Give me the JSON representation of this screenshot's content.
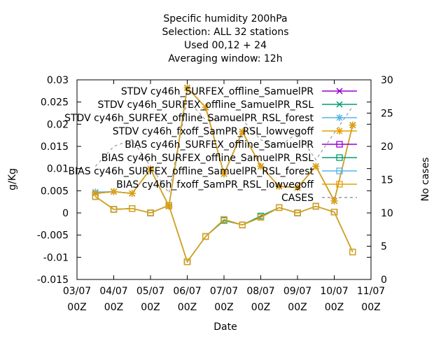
{
  "chart_data": {
    "type": "line",
    "title_lines": [
      "Specific humidity 200hPa",
      "Selection: ALL      32 stations",
      "Used  00,12  + 24",
      "Averaging window: 12h"
    ],
    "xlabel": "Date",
    "ylabel": "g/Kg",
    "y2label": "No cases",
    "x_ticks": [
      {
        "top": "03/07",
        "bottom": "00Z"
      },
      {
        "top": "04/07",
        "bottom": "00Z"
      },
      {
        "top": "05/07",
        "bottom": "00Z"
      },
      {
        "top": "06/07",
        "bottom": "00Z"
      },
      {
        "top": "07/07",
        "bottom": "00Z"
      },
      {
        "top": "08/07",
        "bottom": "00Z"
      },
      {
        "top": "09/07",
        "bottom": "00Z"
      },
      {
        "top": "10/07",
        "bottom": "00Z"
      },
      {
        "top": "11/07",
        "bottom": "00Z"
      }
    ],
    "x_step_days": 0.5,
    "x_start_index": 0.5,
    "ylim": [
      -0.015,
      0.03
    ],
    "y_ticks": [
      "-0.015",
      "-0.01",
      "-0.005",
      "0",
      "0.005",
      "0.01",
      "0.015",
      "0.02",
      "0.025",
      "0.03"
    ],
    "y_tick_values": [
      -0.015,
      -0.01,
      -0.005,
      0,
      0.005,
      0.01,
      0.015,
      0.02,
      0.025,
      0.03
    ],
    "y2lim": [
      0,
      30
    ],
    "y2_ticks": [
      "0",
      "5",
      "10",
      "15",
      "20",
      "25",
      "30"
    ],
    "y2_tick_values": [
      0,
      5,
      10,
      15,
      20,
      25,
      30
    ],
    "legend_position": "top-right",
    "series": [
      {
        "name": "STDV cy46h_SURFEX_offline_SamuelPR",
        "color": "#9400d3",
        "marker": "x",
        "dash": "",
        "axis": "y",
        "values": [
          0.0044,
          0.0048,
          0.0044,
          0.0099,
          0.0015,
          0.0282,
          0.0238,
          0.0088,
          0.0183,
          0.0105,
          0.006,
          0.0057,
          0.0105,
          0.0027,
          0.0198
        ]
      },
      {
        "name": "STDV cy46h_SURFEX_offline_SamuelPR_RSL",
        "color": "#009e73",
        "marker": "x",
        "dash": "",
        "axis": "y",
        "values": [
          0.0044,
          0.0048,
          0.0044,
          0.0099,
          0.0015,
          0.0282,
          0.0238,
          0.0088,
          0.0183,
          0.0105,
          0.006,
          0.0057,
          0.0105,
          0.0027,
          0.0198
        ]
      },
      {
        "name": "STDV cy46h_SURFEX_offline_SamuelPR_RSL_forest",
        "color": "#56b4e9",
        "marker": "star",
        "dash": "",
        "axis": "y",
        "values": [
          0.0047,
          0.0048,
          0.0044,
          0.0099,
          0.0015,
          0.0282,
          0.0238,
          0.0088,
          0.0183,
          0.0105,
          0.006,
          0.0057,
          0.0105,
          0.0027,
          0.0198
        ]
      },
      {
        "name": "STDV cy46h_fxoff_SamPR_RSL_lowvegoff",
        "color": "#e69f00",
        "marker": "star",
        "dash": "",
        "axis": "y",
        "values": [
          0.0044,
          0.0048,
          0.0044,
          0.0099,
          0.0015,
          0.0282,
          0.0238,
          0.0088,
          0.0183,
          0.0105,
          0.006,
          0.0057,
          0.0105,
          0.0027,
          0.0198
        ]
      },
      {
        "name": "BIAS cy46h_SURFEX_offline_SamuelPR",
        "color": "#9400d3",
        "marker": "square",
        "dash": "",
        "axis": "y",
        "values": [
          0.0037,
          0.0008,
          0.001,
          0.0,
          0.0017,
          -0.011,
          -0.0053,
          -0.0015,
          -0.0027,
          -0.001,
          0.0012,
          0.0,
          0.0015,
          0.0002,
          -0.0088
        ]
      },
      {
        "name": "BIAS cy46h_SURFEX_offline_SamuelPR_RSL",
        "color": "#009e73",
        "marker": "square",
        "dash": "",
        "axis": "y",
        "values": [
          0.0037,
          0.0008,
          0.001,
          0.0,
          0.0017,
          -0.011,
          -0.0053,
          -0.0017,
          -0.0027,
          -0.0007,
          0.0012,
          0.0,
          0.0015,
          0.0002,
          -0.0088
        ]
      },
      {
        "name": "BIAS cy46h_SURFEX_offline_SamuelPR_RSL_forest",
        "color": "#56b4e9",
        "marker": "square",
        "dash": "",
        "axis": "y",
        "values": [
          0.0037,
          0.0008,
          0.001,
          0.0,
          0.0017,
          -0.011,
          -0.0053,
          -0.0015,
          -0.0027,
          -0.001,
          0.0012,
          0.0,
          0.0015,
          0.0002,
          -0.0088
        ]
      },
      {
        "name": "BIAS cy46h_fxoff_SamPR_RSL_lowvegoff",
        "color": "#e69f00",
        "marker": "square",
        "dash": "",
        "axis": "y",
        "values": [
          0.0037,
          0.0008,
          0.001,
          0.0,
          0.0017,
          -0.011,
          -0.0053,
          -0.0015,
          -0.0027,
          -0.001,
          0.0012,
          0.0,
          0.0015,
          0.0002,
          -0.0088
        ]
      },
      {
        "name": "CASES",
        "color": "#999999",
        "marker": "",
        "dash": "4,4",
        "axis": "y2",
        "values": [
          17,
          20,
          21,
          17,
          13,
          27,
          24,
          24,
          24,
          21,
          20,
          22,
          18,
          22,
          26
        ]
      }
    ]
  }
}
